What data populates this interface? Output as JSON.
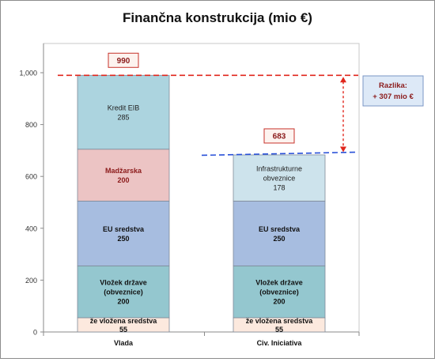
{
  "chart_data": {
    "type": "bar",
    "stacked": true,
    "title": "Finančna konstrukcija (mio €)",
    "xlabel": "",
    "ylabel": "",
    "ylim": [
      0,
      1000
    ],
    "yticks": [
      0,
      200,
      400,
      600,
      800,
      1000
    ],
    "ytick_labels": [
      "0",
      "200",
      "400",
      "600",
      "800",
      "1,000"
    ],
    "grid": false,
    "legend": "none",
    "categories": [
      "Vlada",
      "Civ. Iniciativa"
    ],
    "stacks": [
      {
        "category": "Vlada",
        "total": 990,
        "total_label": "990",
        "segments": [
          {
            "value": 55,
            "label_lines": [
              "že vložena sredstva",
              "55"
            ],
            "fill": "#fce9de",
            "bold": true,
            "text_color": "#111111"
          },
          {
            "value": 200,
            "label_lines": [
              "Vložek države",
              "(obveznice)",
              "200"
            ],
            "fill": "#94c7cf",
            "bold": true,
            "text_color": "#111111"
          },
          {
            "value": 250,
            "label_lines": [
              "EU sredstva",
              "250"
            ],
            "fill": "#a7bde0",
            "bold": true,
            "text_color": "#111111"
          },
          {
            "value": 200,
            "label_lines": [
              "Madžarska",
              "200"
            ],
            "fill": "#ecc4c4",
            "bold": true,
            "text_color": "#8b1a1a"
          },
          {
            "value": 285,
            "label_lines": [
              "Kredit EIB",
              "285"
            ],
            "fill": "#acd4df",
            "bold": false,
            "text_color": "#222222"
          }
        ]
      },
      {
        "category": "Civ. Iniciativa",
        "total": 683,
        "total_label": "683",
        "segments": [
          {
            "value": 55,
            "label_lines": [
              "že vložena sredstva",
              "55"
            ],
            "fill": "#fce9de",
            "bold": true,
            "text_color": "#111111"
          },
          {
            "value": 200,
            "label_lines": [
              "Vložek države",
              "(obveznice)",
              "200"
            ],
            "fill": "#94c7cf",
            "bold": true,
            "text_color": "#111111"
          },
          {
            "value": 250,
            "label_lines": [
              "EU sredstva",
              "250"
            ],
            "fill": "#a7bde0",
            "bold": true,
            "text_color": "#111111"
          },
          {
            "value": 178,
            "label_lines": [
              "Infrastrukturne",
              "obveznice",
              "178"
            ],
            "fill": "#cde3ec",
            "bold": false,
            "text_color": "#222222"
          }
        ]
      }
    ],
    "reference_lines": [
      {
        "value": 990,
        "color": "#e0261c",
        "style": "dashed"
      },
      {
        "value": 683,
        "color": "#2850d8",
        "style": "dashed"
      }
    ],
    "difference_annotation": {
      "lines": [
        "Razlika:",
        "+ 307 mio €"
      ],
      "from": 683,
      "to": 990,
      "color": "#8b1a1a",
      "arrow_color": "#e0261c"
    }
  }
}
